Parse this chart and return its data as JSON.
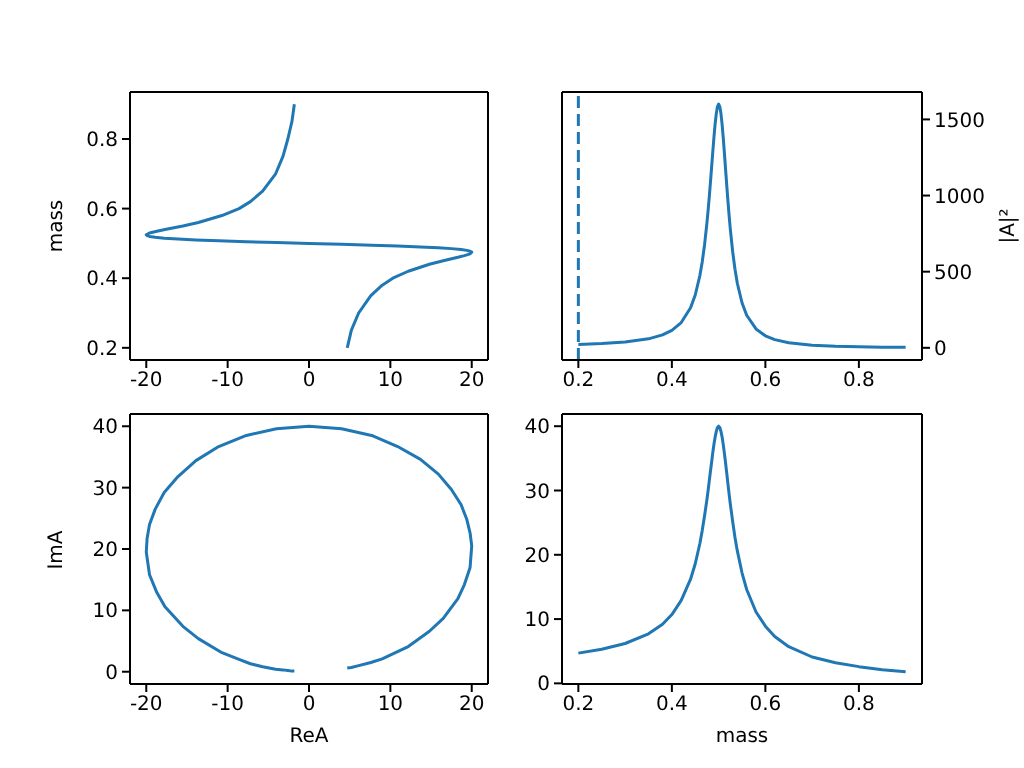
{
  "chart_data": [
    {
      "type": "line",
      "ylabel": "mass",
      "xlim": [
        -22,
        22
      ],
      "xticks": [
        -20,
        -10,
        0,
        10,
        20
      ],
      "ylim": [
        0.165,
        0.935
      ],
      "yticks": [
        0.2,
        0.4,
        0.6,
        0.8
      ],
      "series": [
        {
          "color": "#1f77b4",
          "x": [
            4.7,
            5.2,
            6.1,
            7.6,
            9.0,
            10.3,
            12.2,
            14.8,
            16.5,
            18.3,
            19.1,
            19.8,
            20.0,
            19.8,
            19.4,
            18.7,
            17.5,
            15.9,
            13.7,
            10.9,
            7.7,
            4.0,
            0,
            -4.0,
            -7.7,
            -11.1,
            -13.9,
            -16.1,
            -17.8,
            -18.9,
            -19.6,
            -19.9,
            -20.0,
            -19.6,
            -18.7,
            -17.7,
            -15.5,
            -13.6,
            -10.7,
            -8.6,
            -7.2,
            -5.7,
            -4.1,
            -3.2,
            -2.6,
            -2.1,
            -1.8
          ],
          "values": [
            0.2,
            0.25,
            0.3,
            0.35,
            0.38,
            0.4,
            0.42,
            0.44,
            0.45,
            0.46,
            0.465,
            0.47,
            0.475,
            0.4775,
            0.48,
            0.4825,
            0.485,
            0.4875,
            0.49,
            0.4925,
            0.495,
            0.4975,
            0.5,
            0.5025,
            0.505,
            0.5075,
            0.51,
            0.5125,
            0.515,
            0.5175,
            0.52,
            0.5225,
            0.525,
            0.53,
            0.535,
            0.54,
            0.55,
            0.56,
            0.58,
            0.6,
            0.62,
            0.65,
            0.7,
            0.75,
            0.8,
            0.85,
            0.9
          ]
        }
      ]
    },
    {
      "type": "line",
      "y2label": "|A|²",
      "xlim": [
        0.165,
        0.935
      ],
      "xticks": [
        0.2,
        0.4,
        0.6,
        0.8
      ],
      "y2lim": [
        -80,
        1680
      ],
      "y2ticks": [
        0,
        500,
        1000,
        1500
      ],
      "ref_lines": [
        {
          "axis": "x",
          "value": 0.2,
          "color": "#1f77b4",
          "line_style": "dashed"
        }
      ],
      "series": [
        {
          "color": "#1f77b4",
          "axis": "y2",
          "x": [
            0.2,
            0.25,
            0.3,
            0.35,
            0.38,
            0.4,
            0.42,
            0.44,
            0.45,
            0.46,
            0.465,
            0.47,
            0.475,
            0.4775,
            0.48,
            0.4825,
            0.485,
            0.4875,
            0.49,
            0.4925,
            0.495,
            0.4975,
            0.5,
            0.5025,
            0.505,
            0.5075,
            0.51,
            0.5125,
            0.515,
            0.5175,
            0.52,
            0.5225,
            0.525,
            0.53,
            0.535,
            0.54,
            0.55,
            0.56,
            0.58,
            0.6,
            0.62,
            0.65,
            0.7,
            0.75,
            0.8,
            0.85,
            0.9
          ],
          "values": [
            22,
            28,
            38,
            59,
            85,
            115,
            166,
            263,
            347,
            476,
            566,
            679,
            820,
            902,
            991,
            1086,
            1186,
            1286,
            1383,
            1470,
            1538,
            1584,
            1600,
            1584,
            1538,
            1466,
            1376,
            1274,
            1167,
            1062,
            961,
            866,
            780,
            633,
            516,
            424,
            296,
            214,
            124,
            79,
            54,
            33,
            17,
            10,
            7,
            4,
            3
          ]
        }
      ]
    },
    {
      "type": "line",
      "xlabel": "ReA",
      "ylabel": "ImA",
      "xlim": [
        -22,
        22
      ],
      "xticks": [
        -20,
        -10,
        0,
        10,
        20
      ],
      "ylim": [
        -2,
        42
      ],
      "yticks": [
        0,
        10,
        20,
        30,
        40
      ],
      "series": [
        {
          "color": "#1f77b4",
          "x": [
            4.7,
            5.2,
            6.1,
            7.6,
            9.0,
            10.3,
            12.2,
            14.8,
            16.5,
            18.3,
            19.1,
            19.8,
            20.0,
            19.8,
            19.4,
            18.7,
            17.5,
            15.9,
            13.7,
            10.9,
            7.7,
            4.0,
            0,
            -4.0,
            -7.7,
            -11.1,
            -13.9,
            -16.1,
            -17.8,
            -18.9,
            -19.6,
            -19.9,
            -20.0,
            -19.6,
            -18.7,
            -17.7,
            -15.5,
            -13.6,
            -10.7,
            -8.6,
            -7.2,
            -5.7,
            -4.1,
            -3.2,
            -2.6,
            -2.1,
            -1.8
          ],
          "values": [
            0.6,
            0.7,
            1.0,
            1.5,
            2.1,
            2.9,
            4.1,
            6.6,
            8.7,
            11.9,
            14.2,
            17.0,
            20.5,
            22.6,
            24.8,
            27.2,
            29.7,
            32.2,
            34.6,
            36.7,
            38.5,
            39.6,
            40,
            39.6,
            38.5,
            36.7,
            34.4,
            31.8,
            29.2,
            26.5,
            24.0,
            21.7,
            19.5,
            15.8,
            12.9,
            10.6,
            7.4,
            5.4,
            3.1,
            2.0,
            1.3,
            0.8,
            0.4,
            0.3,
            0.2,
            0.1,
            0.1
          ]
        }
      ]
    },
    {
      "type": "line",
      "xlabel": "mass",
      "xlim": [
        0.165,
        0.935
      ],
      "xticks": [
        0.2,
        0.4,
        0.6,
        0.8
      ],
      "ylim": [
        -0.1,
        41.9
      ],
      "yticks": [
        0,
        10,
        20,
        30,
        40
      ],
      "series": [
        {
          "color": "#1f77b4",
          "x": [
            0.2,
            0.25,
            0.3,
            0.35,
            0.38,
            0.4,
            0.42,
            0.44,
            0.45,
            0.46,
            0.465,
            0.47,
            0.475,
            0.4775,
            0.48,
            0.4825,
            0.485,
            0.4875,
            0.49,
            0.4925,
            0.495,
            0.4975,
            0.5,
            0.5025,
            0.505,
            0.5075,
            0.51,
            0.5125,
            0.515,
            0.5175,
            0.52,
            0.5225,
            0.525,
            0.53,
            0.535,
            0.54,
            0.55,
            0.56,
            0.58,
            0.6,
            0.62,
            0.65,
            0.7,
            0.75,
            0.8,
            0.85,
            0.9
          ],
          "values": [
            4.7,
            5.3,
            6.2,
            7.7,
            9.2,
            10.7,
            12.9,
            16.2,
            18.6,
            21.8,
            23.8,
            26.1,
            28.6,
            30.0,
            31.5,
            33.0,
            34.4,
            35.9,
            37.2,
            38.3,
            39.2,
            39.8,
            40,
            39.8,
            39.2,
            38.3,
            37.1,
            35.7,
            34.2,
            32.6,
            31.0,
            29.4,
            27.9,
            25.2,
            22.7,
            20.6,
            17.2,
            14.6,
            11.1,
            8.9,
            7.3,
            5.7,
            4.1,
            3.2,
            2.6,
            2.1,
            1.8
          ]
        }
      ]
    }
  ]
}
